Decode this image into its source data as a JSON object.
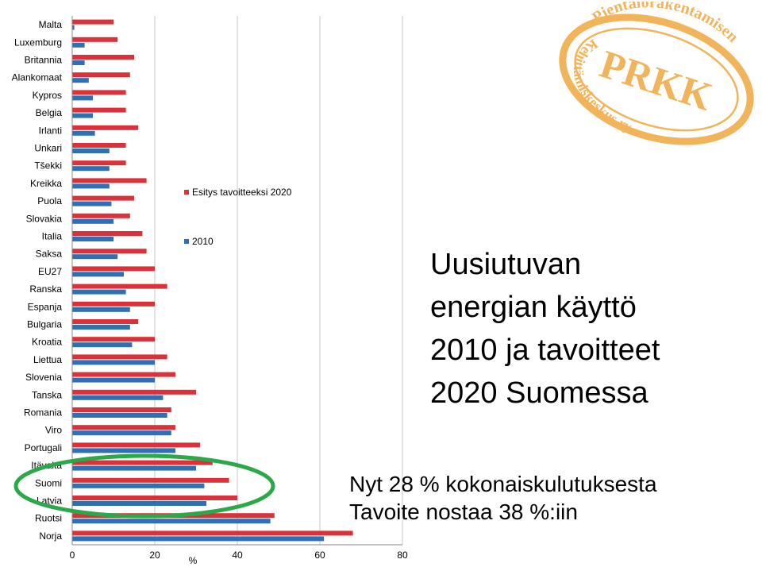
{
  "colors": {
    "target": "#d9323b",
    "current": "#2f6fb5",
    "highlight": "#2aa84a",
    "logo": "#f2b45a",
    "grid": "#c8c8c8"
  },
  "chart_data": {
    "type": "bar",
    "orientation": "horizontal",
    "xlabel": "%",
    "xlim": [
      0,
      80
    ],
    "xticks": [
      0,
      20,
      40,
      60,
      80
    ],
    "grid": true,
    "legend_position": "right",
    "categories": [
      "Malta",
      "Luxemburg",
      "Britannia",
      "Alankomaat",
      "Kypros",
      "Belgia",
      "Irlanti",
      "Unkari",
      "Tšekki",
      "Kreikka",
      "Puola",
      "Slovakia",
      "Italia",
      "Saksa",
      "EU27",
      "Ranska",
      "Espanja",
      "Bulgaria",
      "Kroatia",
      "Liettua",
      "Slovenia",
      "Tanska",
      "Romania",
      "Viro",
      "Portugali",
      "Itävalta",
      "Suomi",
      "Latvia",
      "Ruotsi",
      "Norja"
    ],
    "series": [
      {
        "name": "Esitys tavoitteeksi 2020",
        "color": "#d9323b",
        "values": [
          10,
          11,
          15,
          14,
          13,
          13,
          16,
          13,
          13,
          18,
          15,
          14,
          17,
          18,
          20,
          23,
          20,
          16,
          20,
          23,
          25,
          30,
          24,
          25,
          31,
          34,
          38,
          40,
          49,
          68
        ]
      },
      {
        "name": "2010",
        "color": "#2f6fb5",
        "values": [
          0.5,
          3,
          3,
          4,
          5,
          5,
          5.5,
          9,
          9,
          9,
          9.5,
          10,
          10,
          11,
          12.5,
          13,
          14,
          14,
          14.5,
          20,
          20,
          22,
          23,
          24,
          25,
          30,
          32,
          32.5,
          48,
          61
        ]
      }
    ]
  },
  "title_lines": [
    "Uusiutuvan",
    "energian käyttö",
    "2010 ja tavoitteet",
    "2020 Suomessa"
  ],
  "note_lines": [
    "Nyt 28 % kokonaiskulutuksesta",
    "Tavoite nostaa 38 %:iin"
  ],
  "logo": {
    "main_text": "PRKK",
    "arc_top": "Pientalorakentamisen",
    "arc_bottom": "Kehittämiskeskus ry"
  }
}
